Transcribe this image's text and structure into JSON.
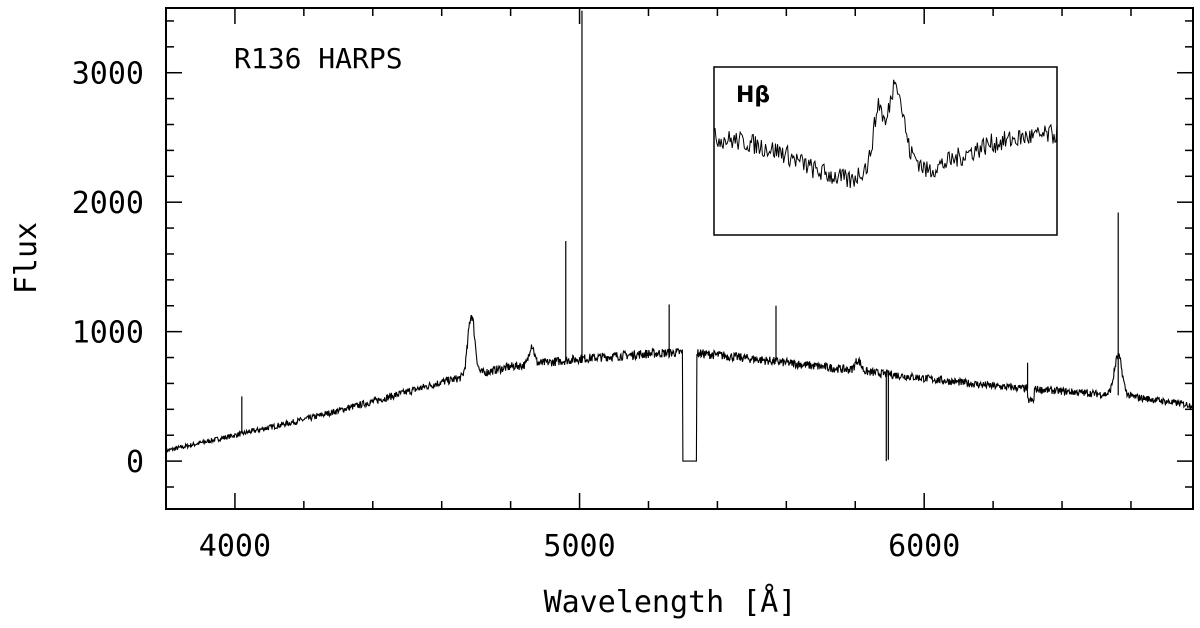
{
  "chart_data": {
    "type": "line",
    "title": "R136 HARPS",
    "xlabel": "Wavelength [Å]",
    "ylabel": "Flux",
    "xlim": [
      3800,
      6780
    ],
    "ylim": [
      -370,
      3500
    ],
    "xticks": [
      4000,
      5000,
      6000
    ],
    "yticks": [
      0,
      1000,
      2000,
      3000
    ],
    "grid": false,
    "legend": "none",
    "series": [
      {
        "style": "black-noisy-line",
        "continuum": [
          [
            3800,
            80
          ],
          [
            4000,
            200
          ],
          [
            4200,
            320
          ],
          [
            4400,
            460
          ],
          [
            4600,
            610
          ],
          [
            4800,
            730
          ],
          [
            5000,
            790
          ],
          [
            5200,
            830
          ],
          [
            5300,
            840
          ],
          [
            5400,
            820
          ],
          [
            5600,
            760
          ],
          [
            5800,
            700
          ],
          [
            6000,
            640
          ],
          [
            6200,
            580
          ],
          [
            6400,
            540
          ],
          [
            6600,
            500
          ],
          [
            6780,
            430
          ]
        ],
        "emission_lines": [
          {
            "center": 4686,
            "peak": 1130,
            "width": 14
          },
          {
            "center": 4861,
            "peak": 900,
            "width": 10
          },
          {
            "center": 5808,
            "peak": 780,
            "width": 12
          },
          {
            "center": 6563,
            "peak": 810,
            "width": 16
          }
        ],
        "spikes": [
          {
            "x": 4020,
            "y": 500
          },
          {
            "x": 4960,
            "y": 1700
          },
          {
            "x": 5007,
            "y": 3480
          },
          {
            "x": 5260,
            "y": 1210
          },
          {
            "x": 5570,
            "y": 1200
          },
          {
            "x": 6300,
            "y": 760
          },
          {
            "x": 6563,
            "y": 1920
          },
          {
            "x": 5890,
            "y": 0
          },
          {
            "x": 5896,
            "y": 10
          }
        ],
        "gap": {
          "from": 5300,
          "to": 5340,
          "y": 0
        }
      }
    ],
    "inset": {
      "label": "Hβ",
      "profile": [
        [
          0.0,
          0.58
        ],
        [
          0.1,
          0.55
        ],
        [
          0.2,
          0.49
        ],
        [
          0.3,
          0.38
        ],
        [
          0.4,
          0.32
        ],
        [
          0.45,
          0.42
        ],
        [
          0.48,
          0.8
        ],
        [
          0.5,
          0.65
        ],
        [
          0.53,
          0.96
        ],
        [
          0.57,
          0.5
        ],
        [
          0.62,
          0.38
        ],
        [
          0.7,
          0.45
        ],
        [
          0.8,
          0.54
        ],
        [
          0.9,
          0.58
        ],
        [
          1.0,
          0.6
        ]
      ]
    }
  }
}
